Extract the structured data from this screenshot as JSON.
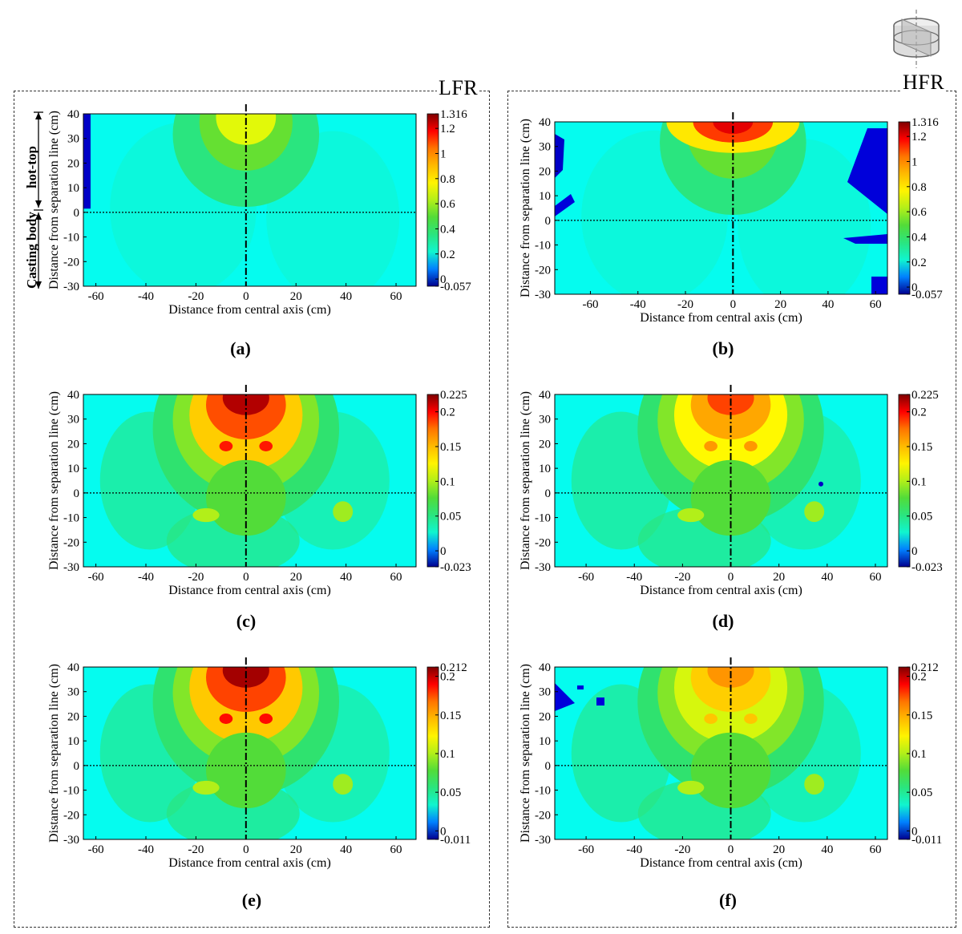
{
  "figure": {
    "groups": [
      {
        "key": "left",
        "title": "LFR"
      },
      {
        "key": "right",
        "title": "HFR"
      }
    ],
    "side_labels": {
      "hot_top": "hot-top",
      "casting_body": "Casting body"
    },
    "colors": {
      "deep_blue": "#00008f",
      "blue": "#0000ff",
      "cyan": "#00ffff",
      "green": "#3fd83f",
      "yellow": "#ffff00",
      "orange": "#ff8c00",
      "red": "#ff0000",
      "dark_red": "#7f0000",
      "field_base": "#1ff0e0"
    }
  },
  "chart_data": [
    {
      "id": "a",
      "caption": "(a)",
      "type": "heatmap",
      "xlabel": "Distance from central axis (cm)",
      "ylabel": "Distance from separation line (cm)",
      "xlim": [
        -65,
        68
      ],
      "ylim": [
        -30,
        40
      ],
      "xticks": [
        "-60",
        "-40",
        "-20",
        "0",
        "20",
        "40",
        "60"
      ],
      "yticks": [
        "40",
        "30",
        "20",
        "10",
        "0",
        "-10",
        "-20",
        "-30"
      ],
      "colorbar": {
        "max": 1.316,
        "min": -0.057,
        "labels": [
          "1.316",
          "1.2",
          "1",
          "0.8",
          "0.6",
          "0.4",
          "0.2",
          "0",
          "-0.057"
        ]
      },
      "field": "central-high-top",
      "peak": 0.7
    },
    {
      "id": "b",
      "caption": "(b)",
      "type": "heatmap",
      "xlabel": "Distance from central axis (cm)",
      "ylabel": "Distance from separation line (cm)",
      "xlim": [
        -75,
        65
      ],
      "ylim": [
        -30,
        40
      ],
      "xticks": [
        "-60",
        "-40",
        "-20",
        "0",
        "20",
        "40",
        "60"
      ],
      "yticks": [
        "40",
        "30",
        "20",
        "10",
        "0",
        "-10",
        "-20",
        "-30"
      ],
      "colorbar": {
        "max": 1.316,
        "min": -0.057,
        "labels": [
          "1.316",
          "1.2",
          "1",
          "0.8",
          "0.6",
          "0.4",
          "0.2",
          "0",
          "-0.057"
        ]
      },
      "field": "central-high-top",
      "peak": 1.0
    },
    {
      "id": "c",
      "caption": "(c)",
      "type": "heatmap",
      "xlabel": "Distance from central axis (cm)",
      "ylabel": "Distance from separation line (cm)",
      "xlim": [
        -65,
        68
      ],
      "ylim": [
        -30,
        40
      ],
      "xticks": [
        "-60",
        "-40",
        "-20",
        "0",
        "20",
        "40",
        "60"
      ],
      "yticks": [
        "40",
        "30",
        "20",
        "10",
        "0",
        "-10",
        "-20",
        "-30"
      ],
      "colorbar": {
        "max": 0.225,
        "min": -0.023,
        "labels": [
          "0.225",
          "0.2",
          "0.15",
          "0.1",
          "0.05",
          "0",
          "-0.023"
        ]
      },
      "field": "funnel",
      "peak": 0.22
    },
    {
      "id": "d",
      "caption": "(d)",
      "type": "heatmap",
      "xlabel": "Distance from central axis (cm)",
      "ylabel": "Distance from separation line (cm)",
      "xlim": [
        -73,
        65
      ],
      "ylim": [
        -30,
        40
      ],
      "xticks": [
        "-60",
        "-40",
        "-20",
        "0",
        "20",
        "40",
        "60"
      ],
      "yticks": [
        "40",
        "30",
        "20",
        "10",
        "0",
        "-10",
        "-20",
        "-30"
      ],
      "colorbar": {
        "max": 0.225,
        "min": -0.023,
        "labels": [
          "0.225",
          "0.2",
          "0.15",
          "0.1",
          "0.05",
          "0",
          "-0.023"
        ]
      },
      "field": "funnel",
      "peak": 0.19
    },
    {
      "id": "e",
      "caption": "(e)",
      "type": "heatmap",
      "xlabel": "Distance from central axis (cm)",
      "ylabel": "Distance from separation line (cm)",
      "xlim": [
        -65,
        68
      ],
      "ylim": [
        -30,
        40
      ],
      "xticks": [
        "-60",
        "-40",
        "-20",
        "0",
        "20",
        "40",
        "60"
      ],
      "yticks": [
        "40",
        "30",
        "20",
        "10",
        "0",
        "-10",
        "-20",
        "-30"
      ],
      "colorbar": {
        "max": 0.212,
        "min": -0.011,
        "labels": [
          "0.212",
          "0.2",
          "0.15",
          "0.1",
          "0.05",
          "0",
          "-0.011"
        ]
      },
      "field": "funnel",
      "peak": 0.21
    },
    {
      "id": "f",
      "caption": "(f)",
      "type": "heatmap",
      "xlabel": "Distance from central axis (cm)",
      "ylabel": "Distance from separation line (cm)",
      "xlim": [
        -73,
        65
      ],
      "ylim": [
        -30,
        40
      ],
      "xticks": [
        "-60",
        "-40",
        "-20",
        "0",
        "20",
        "40",
        "60"
      ],
      "yticks": [
        "40",
        "30",
        "20",
        "10",
        "0",
        "-10",
        "-20",
        "-30"
      ],
      "colorbar": {
        "max": 0.212,
        "min": -0.011,
        "labels": [
          "0.212",
          "0.2",
          "0.15",
          "0.1",
          "0.05",
          "0",
          "-0.011"
        ]
      },
      "field": "funnel",
      "peak": 0.16
    }
  ]
}
